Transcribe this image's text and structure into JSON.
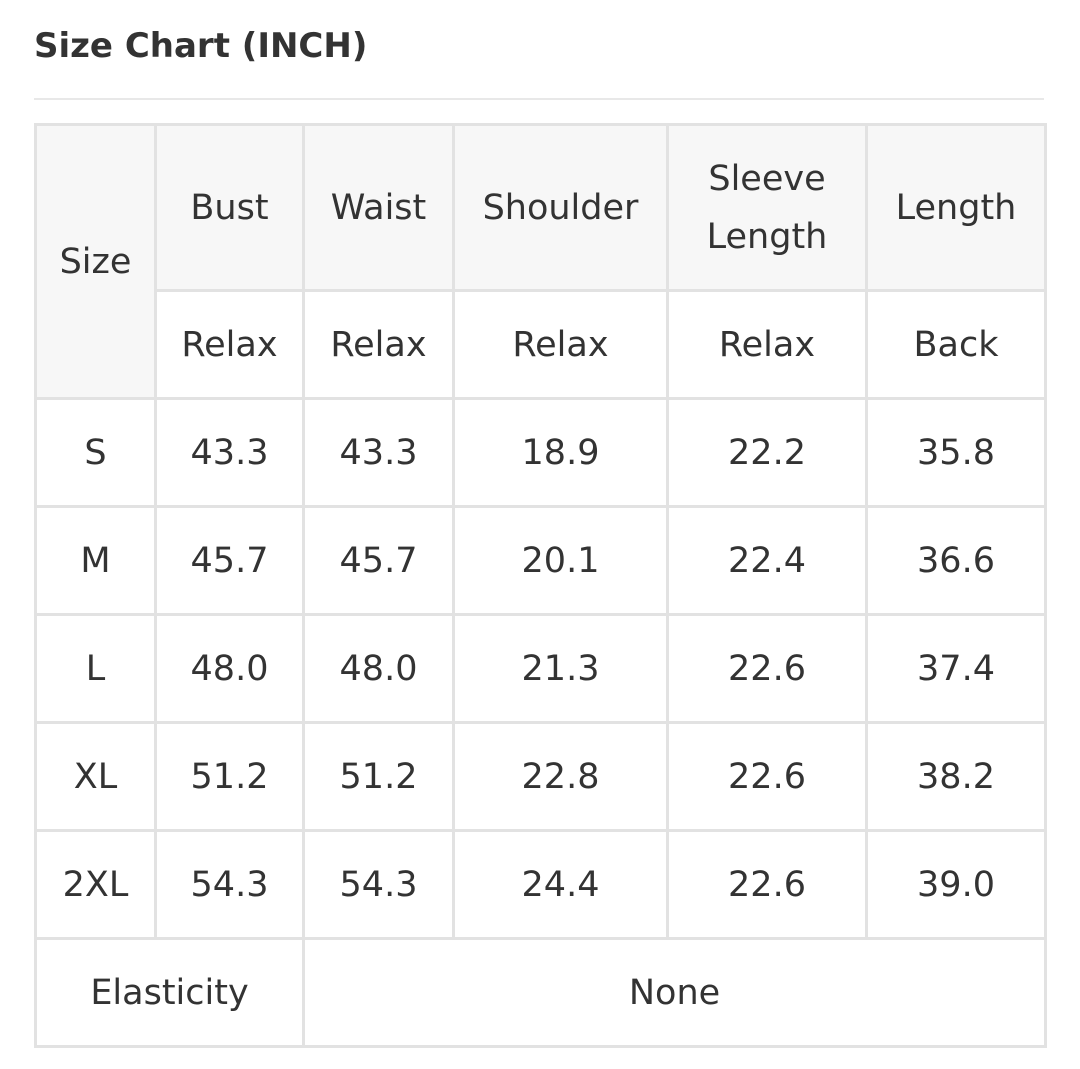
{
  "title": "Size Chart (INCH)",
  "table": {
    "size_header": "Size",
    "columns": [
      {
        "name": "Bust",
        "sub": "Relax"
      },
      {
        "name": "Waist",
        "sub": "Relax"
      },
      {
        "name": "Shoulder",
        "sub": "Relax"
      },
      {
        "name": "Sleeve Length",
        "sub": "Relax"
      },
      {
        "name": "Length",
        "sub": "Back"
      }
    ],
    "rows": [
      {
        "size": "S",
        "values": [
          "43.3",
          "43.3",
          "18.9",
          "22.2",
          "35.8"
        ]
      },
      {
        "size": "M",
        "values": [
          "45.7",
          "45.7",
          "20.1",
          "22.4",
          "36.6"
        ]
      },
      {
        "size": "L",
        "values": [
          "48.0",
          "48.0",
          "21.3",
          "22.6",
          "37.4"
        ]
      },
      {
        "size": "XL",
        "values": [
          "51.2",
          "51.2",
          "22.8",
          "22.6",
          "38.2"
        ]
      },
      {
        "size": "2XL",
        "values": [
          "54.3",
          "54.3",
          "24.4",
          "22.6",
          "39.0"
        ]
      }
    ],
    "footer": {
      "label": "Elasticity",
      "value": "None"
    }
  }
}
